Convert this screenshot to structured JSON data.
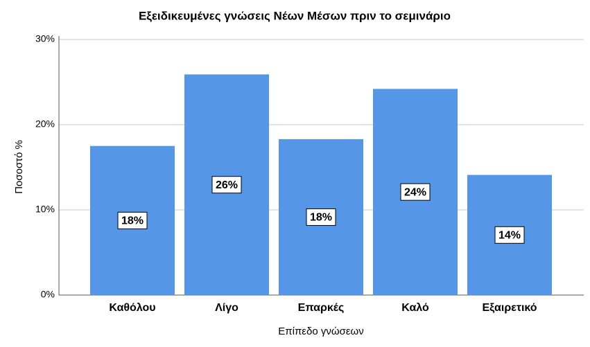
{
  "chart_data": {
    "type": "bar",
    "title": "Εξειδικευμένες γνώσεις Νέων Μέσων πριν το σεμινάριο",
    "x_label": "Επίπεδο γνώσεων",
    "y_label": "Ποσοστό %",
    "categories": [
      "Καθόλου",
      "Λίγο",
      "Επαρκές",
      "Καλό",
      "Εξαιρετικό"
    ],
    "values": [
      17.5,
      25.9,
      18.3,
      24.2,
      14.1
    ],
    "value_labels": [
      "18%",
      "26%",
      "18%",
      "24%",
      "14%"
    ],
    "color": "#5596e6",
    "ylim": [
      0,
      30
    ],
    "yticks": [
      {
        "value": 0,
        "label": "0%"
      },
      {
        "value": 10,
        "label": "10%"
      },
      {
        "value": 20,
        "label": "20%"
      },
      {
        "value": 30,
        "label": "30%"
      }
    ],
    "grid": true
  }
}
